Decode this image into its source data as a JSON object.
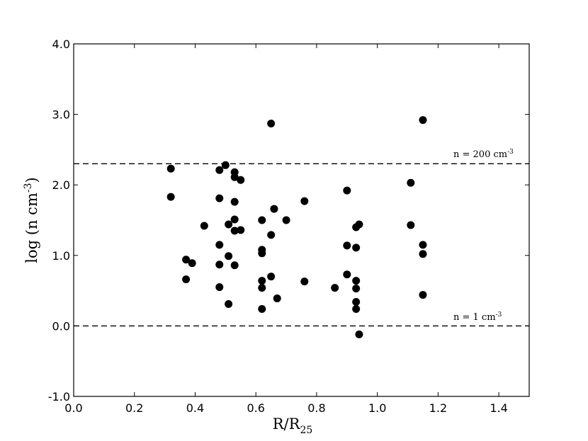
{
  "chart_data": {
    "type": "scatter",
    "xlabel": "R/R",
    "xlabel_sub": "25",
    "ylabel": "log (n cm",
    "ylabel_sup": "-3",
    "ylabel_end": ")",
    "xlim": [
      0.0,
      1.5
    ],
    "ylim": [
      -1.0,
      4.0
    ],
    "x_ticks": [
      0.0,
      0.2,
      0.4,
      0.6,
      0.8,
      1.0,
      1.2,
      1.4
    ],
    "x_tick_labels": [
      "0.0",
      "0.2",
      "0.4",
      "0.6",
      "0.8",
      "1.0",
      "1.2",
      "1.4"
    ],
    "y_ticks": [
      -1.0,
      0.0,
      1.0,
      2.0,
      3.0,
      4.0
    ],
    "y_tick_labels": [
      "-1.0",
      "0.0",
      "1.0",
      "2.0",
      "3.0",
      "4.0"
    ],
    "grid": false,
    "marker_color": "#000000",
    "reference_lines": [
      {
        "y": 2.3,
        "style": "dashed",
        "label": "n = 200 cm",
        "label_sup": "-3"
      },
      {
        "y": 0.0,
        "style": "dashed",
        "label": "n = 1 cm",
        "label_sup": "-3"
      }
    ],
    "points": [
      {
        "x": 0.32,
        "y": 2.23
      },
      {
        "x": 0.32,
        "y": 1.83
      },
      {
        "x": 0.37,
        "y": 0.94
      },
      {
        "x": 0.37,
        "y": 0.66
      },
      {
        "x": 0.39,
        "y": 0.89
      },
      {
        "x": 0.43,
        "y": 1.42
      },
      {
        "x": 0.48,
        "y": 2.21
      },
      {
        "x": 0.48,
        "y": 1.81
      },
      {
        "x": 0.48,
        "y": 1.15
      },
      {
        "x": 0.48,
        "y": 0.87
      },
      {
        "x": 0.48,
        "y": 0.55
      },
      {
        "x": 0.5,
        "y": 2.28
      },
      {
        "x": 0.51,
        "y": 1.44
      },
      {
        "x": 0.51,
        "y": 0.99
      },
      {
        "x": 0.51,
        "y": 0.31
      },
      {
        "x": 0.53,
        "y": 2.18
      },
      {
        "x": 0.53,
        "y": 2.11
      },
      {
        "x": 0.53,
        "y": 1.76
      },
      {
        "x": 0.53,
        "y": 1.51
      },
      {
        "x": 0.53,
        "y": 1.35
      },
      {
        "x": 0.53,
        "y": 0.86
      },
      {
        "x": 0.55,
        "y": 2.07
      },
      {
        "x": 0.55,
        "y": 1.36
      },
      {
        "x": 0.62,
        "y": 1.5
      },
      {
        "x": 0.62,
        "y": 1.08
      },
      {
        "x": 0.62,
        "y": 1.03
      },
      {
        "x": 0.62,
        "y": 0.64
      },
      {
        "x": 0.62,
        "y": 0.54
      },
      {
        "x": 0.62,
        "y": 0.24
      },
      {
        "x": 0.65,
        "y": 2.87
      },
      {
        "x": 0.65,
        "y": 1.29
      },
      {
        "x": 0.65,
        "y": 0.7
      },
      {
        "x": 0.66,
        "y": 1.66
      },
      {
        "x": 0.67,
        "y": 0.39
      },
      {
        "x": 0.7,
        "y": 1.5
      },
      {
        "x": 0.76,
        "y": 1.77
      },
      {
        "x": 0.76,
        "y": 0.63
      },
      {
        "x": 0.86,
        "y": 0.54
      },
      {
        "x": 0.9,
        "y": 1.92
      },
      {
        "x": 0.9,
        "y": 1.14
      },
      {
        "x": 0.9,
        "y": 0.73
      },
      {
        "x": 0.93,
        "y": 1.4
      },
      {
        "x": 0.93,
        "y": 1.11
      },
      {
        "x": 0.93,
        "y": 0.64
      },
      {
        "x": 0.93,
        "y": 0.53
      },
      {
        "x": 0.93,
        "y": 0.34
      },
      {
        "x": 0.93,
        "y": 0.24
      },
      {
        "x": 0.94,
        "y": 1.44
      },
      {
        "x": 0.94,
        "y": -0.12
      },
      {
        "x": 1.11,
        "y": 2.03
      },
      {
        "x": 1.11,
        "y": 1.43
      },
      {
        "x": 1.15,
        "y": 2.92
      },
      {
        "x": 1.15,
        "y": 1.15
      },
      {
        "x": 1.15,
        "y": 1.02
      },
      {
        "x": 1.15,
        "y": 0.44
      }
    ]
  }
}
